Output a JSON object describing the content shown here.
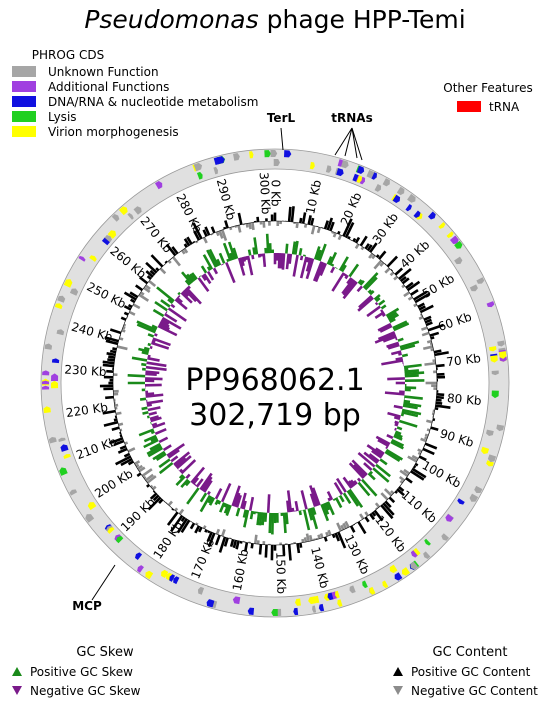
{
  "header": {
    "title_italic": "Pseudomonas",
    "title_rest": "phage HPP-Temi"
  },
  "cds_legend": {
    "title": "PHROG CDS",
    "items": [
      {
        "label": "Unknown Function",
        "color": "#a6a6a6"
      },
      {
        "label": "Additional Functions",
        "color": "#a040e0"
      },
      {
        "label": "DNA/RNA & nucleotide metabolism",
        "color": "#1010e0"
      },
      {
        "label": "Lysis",
        "color": "#20d020"
      },
      {
        "label": "Virion morphogenesis",
        "color": "#ffff00"
      }
    ]
  },
  "other_features": {
    "title": "Other Features",
    "items": [
      {
        "label": "tRNA",
        "color": "#ff0000"
      }
    ]
  },
  "annotations": {
    "terl": "TerL",
    "trnas": "tRNAs",
    "mcp": "MCP"
  },
  "center": {
    "accession": "PP968062.1",
    "length": "302,719 bp"
  },
  "ring_labels": [
    "0 Kb",
    "10 Kb",
    "20 Kb",
    "30 Kb",
    "40 Kb",
    "50 Kb",
    "60 Kb",
    "70 Kb",
    "80 Kb",
    "90 Kb",
    "100 Kb",
    "110 Kb",
    "120 Kb",
    "130 Kb",
    "140 Kb",
    "150 Kb",
    "160 Kb",
    "170 Kb",
    "180 Kb",
    "190 Kb",
    "200 Kb",
    "210 Kb",
    "220 Kb",
    "230 Kb",
    "240 Kb",
    "250 Kb",
    "260 Kb",
    "270 Kb",
    "280 Kb",
    "290 Kb",
    "300 Kb"
  ],
  "gc_skew_legend": {
    "title": "GC Skew",
    "items": [
      {
        "label": "Positive GC Skew",
        "color": "#1a8a1a"
      },
      {
        "label": "Negative GC Skew",
        "color": "#7a1a8a"
      }
    ]
  },
  "gc_content_legend": {
    "title": "GC Content",
    "items": [
      {
        "label": "Positive GC Content",
        "color": "#000000"
      },
      {
        "label": "Negative GC Content",
        "color": "#8c8c8c"
      }
    ]
  }
}
